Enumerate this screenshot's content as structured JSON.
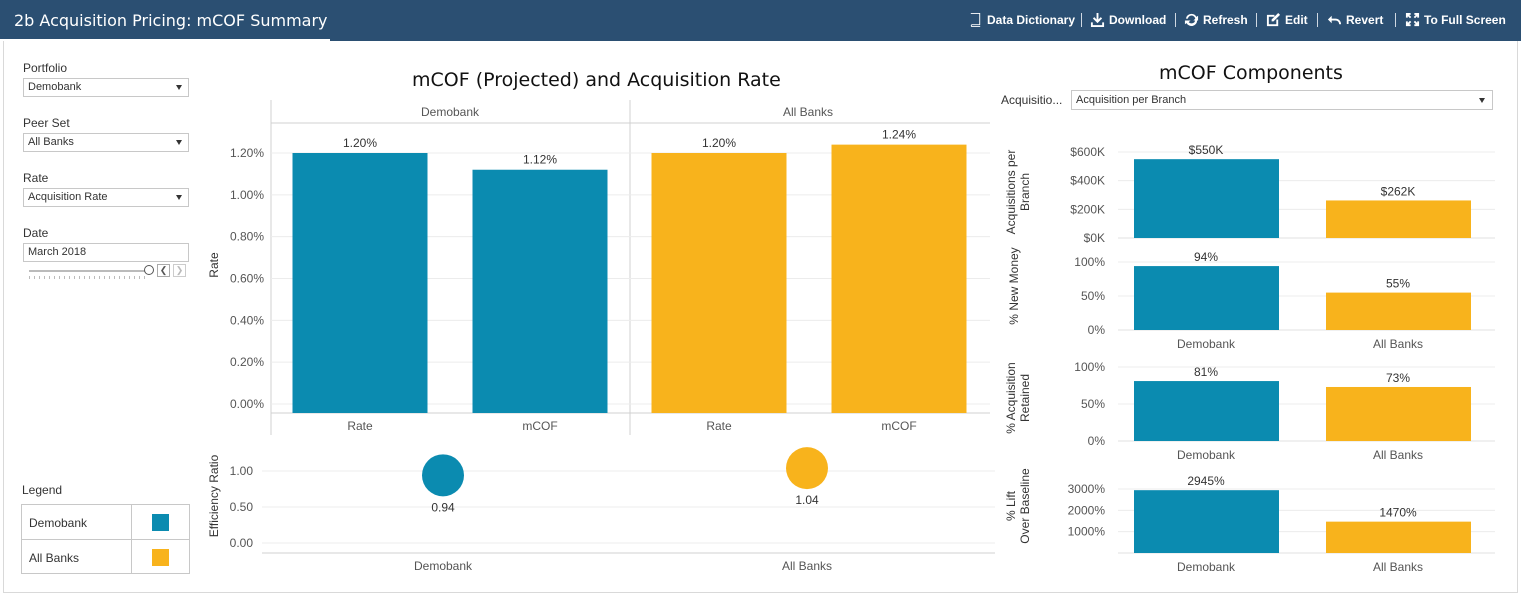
{
  "header": {
    "title": "2b Acquisition Pricing: mCOF Summary",
    "buttons": {
      "data_dictionary": "Data Dictionary",
      "download": "Download",
      "refresh": "Refresh",
      "edit": "Edit",
      "revert": "Revert",
      "full_screen": "To Full Screen"
    }
  },
  "filters": {
    "portfolio": {
      "label": "Portfolio",
      "value": "Demobank"
    },
    "peer_set": {
      "label": "Peer Set",
      "value": "All Banks"
    },
    "rate": {
      "label": "Rate",
      "value": "Acquisition Rate"
    },
    "date": {
      "label": "Date",
      "value": "March 2018"
    }
  },
  "legend": {
    "title": "Legend",
    "items": [
      {
        "label": "Demobank",
        "color": "#0b8bb0"
      },
      {
        "label": "All Banks",
        "color": "#f8b31c"
      }
    ]
  },
  "components": {
    "title": "mCOF Components",
    "dropdown_label": "Acquisitio...",
    "dropdown_value": "Acquisition per Branch"
  },
  "colors": {
    "demobank": "#0b8bb0",
    "all_banks": "#f8b31c",
    "header": "#2b4f72"
  },
  "chart_data": [
    {
      "type": "bar",
      "title": "mCOF (Projected) and Acquisition Rate",
      "ylabel": "Rate",
      "panels": [
        "Demobank",
        "All Banks"
      ],
      "categories": [
        "Rate",
        "mCOF"
      ],
      "series": [
        {
          "name": "Demobank",
          "values": [
            1.2,
            1.12
          ],
          "labels": [
            "1.20%",
            "1.12%"
          ]
        },
        {
          "name": "All Banks",
          "values": [
            1.2,
            1.24
          ],
          "labels": [
            "1.20%",
            "1.24%"
          ]
        }
      ],
      "yticks": [
        "0.00%",
        "0.20%",
        "0.40%",
        "0.60%",
        "0.80%",
        "1.00%",
        "1.20%"
      ],
      "ylim": [
        0,
        1.24
      ]
    },
    {
      "type": "scatter",
      "ylabel": "Efficiency Ratio",
      "categories": [
        "Demobank",
        "All Banks"
      ],
      "values": [
        0.94,
        1.04
      ],
      "labels": [
        "0.94",
        "1.04"
      ],
      "yticks": [
        "0.00",
        "0.50",
        "1.00"
      ],
      "ylim": [
        0,
        1.0
      ]
    },
    {
      "type": "bar",
      "ylabel": "Acquisitions per Branch",
      "categories": [
        "Demobank",
        "All Banks"
      ],
      "values": [
        550,
        262
      ],
      "labels": [
        "$550K",
        "$262K"
      ],
      "yticks": [
        "$0K",
        "$200K",
        "$400K",
        "$600K"
      ],
      "ylim": [
        0,
        600
      ]
    },
    {
      "type": "bar",
      "ylabel": "% New Money",
      "categories": [
        "Demobank",
        "All Banks"
      ],
      "values": [
        94,
        55
      ],
      "labels": [
        "94%",
        "55%"
      ],
      "yticks": [
        "0%",
        "50%",
        "100%"
      ],
      "ylim": [
        0,
        100
      ]
    },
    {
      "type": "bar",
      "ylabel": "% Acquisition Retained",
      "categories": [
        "Demobank",
        "All Banks"
      ],
      "values": [
        81,
        73
      ],
      "labels": [
        "81%",
        "73%"
      ],
      "yticks": [
        "0%",
        "50%",
        "100%"
      ],
      "ylim": [
        0,
        100
      ]
    },
    {
      "type": "bar",
      "ylabel": "% Lift Over Baseline",
      "categories": [
        "Demobank",
        "All Banks"
      ],
      "values": [
        2945,
        1470
      ],
      "labels": [
        "2945%",
        "1470%"
      ],
      "yticks": [
        "1000%",
        "2000%",
        "3000%"
      ],
      "ylim": [
        0,
        3000
      ]
    }
  ]
}
